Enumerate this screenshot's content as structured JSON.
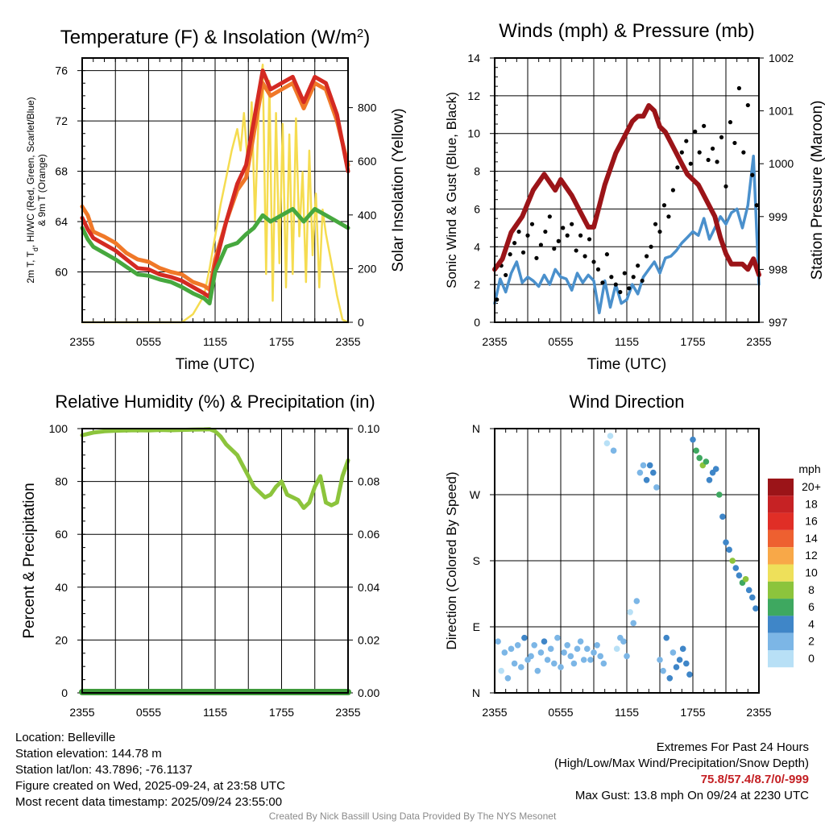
{
  "chart_data": [
    {
      "type": "line",
      "title": "Temperature (F) & Insolation (W/m²)",
      "title_main": "Temperature (F) & Insolation (W/m",
      "title_sup": "2",
      "title_tail": ")",
      "xlabel": "Time (UTC)",
      "ylabel": "2m T, Td, HI/WC (Red, Green, Scarlet/Blue) & 9m T (Orange)",
      "ylabel_line1": "2m T, T",
      "ylabel_sub": "d",
      "ylabel_line1_tail": ", HI/WC (Red, Green, Scarlet/Blue)",
      "ylabel_line2": "& 9m T (Orange)",
      "y2label": "Solar Insolation (Yellow)",
      "x_ticks": [
        "2355",
        "0555",
        "1155",
        "1755",
        "2355"
      ],
      "x_hours": [
        0,
        24
      ],
      "ylim": [
        56,
        77
      ],
      "y_ticks": [
        60,
        64,
        68,
        72,
        76
      ],
      "y2lim": [
        0,
        985
      ],
      "y2_ticks": [
        0,
        200,
        400,
        600,
        800
      ],
      "series": [
        {
          "name": "9m T",
          "color": "#f07828",
          "x": [
            0,
            0.5,
            1,
            2,
            3,
            4,
            5,
            6,
            7,
            8,
            9,
            10,
            11,
            11.5,
            12,
            13,
            14,
            14.8,
            15.5,
            16.3,
            17,
            18,
            19,
            20,
            21,
            22,
            23,
            24
          ],
          "values": [
            65.2,
            64.5,
            63.2,
            62.8,
            62.3,
            61.5,
            61.0,
            60.8,
            60.3,
            60.0,
            59.8,
            59.2,
            58.9,
            58.6,
            61.0,
            64.0,
            66.5,
            67.5,
            71.0,
            75.0,
            74.0,
            74.5,
            75.0,
            73.0,
            75.0,
            74.5,
            72.0,
            68.5
          ]
        },
        {
          "name": "2m T",
          "color": "#d42a22",
          "x": [
            0,
            0.5,
            1,
            2,
            3,
            4,
            5,
            6,
            7,
            8,
            9,
            10,
            11,
            11.5,
            12,
            13,
            14,
            14.8,
            15.5,
            16.3,
            17,
            18,
            19,
            20,
            21,
            22,
            23,
            24
          ],
          "values": [
            64.3,
            63.4,
            62.7,
            62.2,
            61.7,
            61.0,
            60.3,
            60.2,
            59.8,
            59.6,
            59.3,
            58.8,
            58.3,
            58.0,
            60.5,
            64.0,
            67.0,
            68.5,
            72.0,
            76.0,
            74.5,
            75.0,
            75.5,
            73.5,
            75.5,
            75.0,
            72.5,
            68.0
          ]
        },
        {
          "name": "Td",
          "color": "#46a83e",
          "x": [
            0,
            0.5,
            1,
            2,
            3,
            4,
            5,
            6,
            7,
            8,
            9,
            10,
            11,
            11.5,
            12,
            13,
            14,
            14.8,
            15.5,
            16.3,
            17,
            18,
            19,
            20,
            21,
            22,
            23,
            24
          ],
          "values": [
            63.5,
            62.6,
            62.0,
            61.5,
            61.0,
            60.4,
            59.8,
            59.7,
            59.4,
            59.2,
            58.8,
            58.3,
            57.9,
            57.5,
            60.0,
            62.0,
            62.3,
            63.0,
            63.5,
            64.5,
            64.0,
            64.5,
            65.0,
            64.0,
            65.0,
            64.5,
            64.0,
            63.5
          ]
        },
        {
          "name": "Solar Insolation",
          "color": "#f5dc50",
          "axis": "y2",
          "x": [
            0,
            9,
            10,
            11,
            11.5,
            12,
            12.5,
            13,
            13.5,
            14,
            14.3,
            14.6,
            15,
            15.3,
            15.6,
            16,
            16.3,
            16.6,
            16.9,
            17.2,
            17.5,
            17.8,
            18.1,
            18.4,
            18.7,
            19.0,
            19.3,
            19.6,
            19.9,
            20.2,
            20.5,
            20.8,
            21.1,
            21.4,
            21.7,
            22,
            22.5,
            23,
            23.5,
            24
          ],
          "values": [
            0,
            0,
            30,
            100,
            200,
            320,
            440,
            540,
            640,
            720,
            640,
            780,
            560,
            820,
            380,
            860,
            960,
            180,
            900,
            80,
            780,
            220,
            740,
            130,
            700,
            180,
            760,
            320,
            560,
            150,
            640,
            250,
            480,
            130,
            420,
            330,
            220,
            100,
            10,
            0
          ]
        }
      ]
    },
    {
      "type": "line",
      "title": "Winds (mph) & Pressure (mb)",
      "xlabel": "Time (UTC)",
      "ylabel": "Sonic Wind & Gust (Blue, Black)",
      "y2label": "Station Pressure (Maroon)",
      "x_ticks": [
        "2355",
        "0555",
        "1155",
        "1755",
        "2355"
      ],
      "x_hours": [
        0,
        24
      ],
      "ylim": [
        0,
        14
      ],
      "y_ticks": [
        0,
        2,
        4,
        6,
        8,
        10,
        12,
        14
      ],
      "y2lim": [
        997,
        1002
      ],
      "y2_ticks": [
        997,
        998,
        999,
        1000,
        1001,
        1002
      ],
      "series": [
        {
          "name": "Sonic Wind",
          "color": "#4a90cc",
          "x": [
            0,
            0.5,
            1,
            1.5,
            2,
            2.5,
            3,
            3.5,
            4,
            4.5,
            5,
            5.5,
            6,
            6.5,
            7,
            7.5,
            8,
            8.5,
            9,
            9.5,
            10,
            10.5,
            11,
            11.5,
            12,
            12.5,
            13,
            13.5,
            14,
            14.5,
            15,
            15.5,
            16,
            16.5,
            17,
            17.5,
            18,
            18.5,
            19,
            19.5,
            20,
            20.5,
            21,
            21.5,
            22,
            22.5,
            23,
            23.5,
            24
          ],
          "values": [
            1.0,
            2.3,
            1.6,
            2.6,
            3.2,
            2.1,
            2.4,
            2.2,
            1.9,
            2.5,
            2.0,
            2.8,
            2.4,
            2.3,
            1.7,
            2.6,
            2.1,
            2.5,
            2.2,
            0.5,
            2.2,
            0.8,
            2.0,
            1.0,
            1.2,
            2.0,
            1.5,
            2.4,
            2.8,
            3.2,
            2.6,
            3.4,
            3.5,
            3.8,
            4.2,
            4.5,
            4.8,
            4.6,
            5.5,
            4.4,
            5.0,
            5.6,
            5.2,
            5.8,
            6.0,
            5.0,
            6.2,
            8.8,
            2.0
          ]
        },
        {
          "name": "Station Pressure",
          "color": "#9b1418",
          "axis": "y2",
          "x": [
            0,
            0.7,
            1.5,
            2.5,
            3.5,
            4.5,
            5.5,
            6,
            7,
            8,
            8.5,
            9,
            10,
            11,
            11.5,
            12,
            12.5,
            13,
            13.5,
            14,
            14.5,
            15,
            15.5,
            16,
            16.5,
            17,
            17.5,
            18,
            18.5,
            19,
            19.5,
            20,
            20.5,
            21,
            21.5,
            22,
            22.5,
            23,
            23.5,
            24
          ],
          "values": [
            998.0,
            998.2,
            998.7,
            999.0,
            999.5,
            999.8,
            999.5,
            999.7,
            999.4,
            999.0,
            998.8,
            998.8,
            999.6,
            1000.2,
            1000.4,
            1000.6,
            1000.8,
            1000.9,
            1000.9,
            1001.1,
            1001.0,
            1000.7,
            1000.6,
            1000.4,
            1000.2,
            1000.0,
            999.8,
            999.7,
            999.6,
            999.4,
            999.2,
            999.0,
            998.6,
            998.3,
            998.1,
            998.1,
            998.1,
            998.0,
            998.2,
            997.9
          ]
        }
      ],
      "gust_points": {
        "x": [
          0.2,
          0.6,
          1.0,
          1.4,
          1.8,
          2.2,
          2.6,
          3.0,
          3.4,
          3.8,
          4.2,
          4.6,
          5.0,
          5.4,
          5.8,
          6.2,
          6.6,
          7.0,
          7.4,
          7.8,
          8.2,
          8.6,
          9.0,
          9.4,
          9.8,
          10.2,
          10.6,
          11.0,
          11.4,
          11.8,
          12.2,
          12.6,
          13.0,
          13.4,
          13.8,
          14.2,
          14.6,
          15.0,
          15.4,
          15.8,
          16.2,
          16.6,
          17.0,
          17.4,
          17.8,
          18.2,
          18.6,
          19.0,
          19.4,
          19.8,
          20.2,
          20.6,
          21.0,
          21.4,
          21.8,
          22.2,
          22.6,
          23.0,
          23.4,
          23.8
        ],
        "values": [
          1.2,
          3.0,
          2.5,
          3.6,
          4.2,
          4.8,
          3.7,
          4.6,
          5.2,
          3.4,
          4.1,
          4.8,
          5.6,
          3.9,
          4.3,
          5.0,
          4.6,
          5.2,
          3.8,
          4.6,
          3.5,
          4.4,
          3.2,
          2.8,
          2.1,
          3.6,
          2.4,
          2.0,
          1.6,
          2.6,
          1.8,
          2.4,
          3.0,
          2.2,
          3.5,
          4.0,
          5.2,
          4.8,
          6.2,
          5.6,
          7.0,
          8.2,
          9.0,
          9.6,
          8.4,
          10.1,
          9.0,
          10.4,
          8.6,
          9.2,
          8.5,
          9.8,
          7.2,
          10.6,
          9.5,
          12.4,
          9.0,
          11.5,
          7.8,
          6.2
        ]
      }
    },
    {
      "type": "line",
      "title": "Relative Humidity (%) & Precipitation (in)",
      "xlabel": "",
      "ylabel": "Percent & Precipitation",
      "x_ticks": [
        "2355",
        "0555",
        "1155",
        "1755",
        "2355"
      ],
      "x_hours": [
        0,
        24
      ],
      "ylim": [
        0,
        100
      ],
      "y_ticks": [
        0,
        20,
        40,
        60,
        80,
        100
      ],
      "y2lim": [
        0,
        0.1
      ],
      "y2_ticks": [
        "0.00",
        "0.02",
        "0.04",
        "0.06",
        "0.08",
        "0.10"
      ],
      "series": [
        {
          "name": "Relative Humidity",
          "color": "#8cc43c",
          "x": [
            0,
            1,
            2,
            3,
            4,
            5,
            6,
            7,
            8,
            9,
            10,
            11,
            11.5,
            12,
            12.5,
            13,
            13.5,
            14,
            14.5,
            15,
            15.5,
            16,
            16.5,
            17,
            17.5,
            18,
            18.5,
            19,
            19.5,
            20,
            20.5,
            21,
            21.5,
            22,
            22.5,
            23,
            23.5,
            24
          ],
          "values": [
            97.5,
            98.5,
            99.0,
            99.2,
            99.3,
            99.4,
            99.3,
            99.5,
            99.4,
            99.5,
            99.6,
            99.7,
            99.8,
            99.0,
            97.0,
            94.0,
            92.0,
            90.0,
            86.0,
            82.0,
            78.0,
            76.0,
            74.0,
            75.0,
            78.0,
            80.0,
            75.0,
            74.0,
            73.0,
            70.0,
            72.0,
            78.0,
            82.0,
            72.0,
            71.0,
            72.0,
            82.0,
            88.0
          ]
        },
        {
          "name": "Precipitation",
          "color": "#3e9a3a",
          "axis": "y2",
          "x": [
            0,
            24
          ],
          "values": [
            0.0,
            0.0
          ]
        }
      ]
    },
    {
      "type": "scatter",
      "title": "Wind Direction",
      "xlabel": "",
      "ylabel": "Direction (Colored By Speed)",
      "x_ticks": [
        "2355",
        "0555",
        "1155",
        "1755",
        "2355"
      ],
      "x_hours": [
        0,
        24
      ],
      "y_ticks": [
        "N",
        "E",
        "S",
        "W",
        "N"
      ],
      "ylim": [
        0,
        360
      ],
      "colorbar": {
        "unit": "mph",
        "labels": [
          "20+",
          "18",
          "16",
          "14",
          "12",
          "10",
          "8",
          "6",
          "4",
          "2",
          "0"
        ],
        "colors": [
          "#9b1418",
          "#c62224",
          "#e02e26",
          "#ee6030",
          "#f8a848",
          "#eee05a",
          "#8cc43c",
          "#3ea860",
          "#3f86c8",
          "#7cb6e6",
          "#b8e0f6"
        ]
      },
      "points": {
        "x": [
          0.3,
          0.6,
          0.9,
          1.2,
          1.5,
          1.8,
          2.1,
          2.4,
          2.7,
          3.0,
          3.3,
          3.6,
          3.9,
          4.2,
          4.5,
          4.8,
          5.1,
          5.4,
          5.7,
          6.0,
          6.3,
          6.6,
          6.9,
          7.2,
          7.5,
          7.8,
          8.1,
          8.4,
          8.7,
          9.0,
          9.3,
          9.6,
          9.9,
          10.2,
          10.5,
          10.8,
          11.1,
          11.4,
          11.7,
          12.0,
          12.3,
          12.6,
          12.9,
          13.2,
          13.5,
          13.8,
          14.1,
          14.4,
          14.7,
          15.0,
          15.3,
          15.6,
          15.9,
          16.2,
          16.5,
          16.8,
          17.1,
          17.4,
          17.7,
          18.0,
          18.3,
          18.6,
          18.9,
          19.2,
          19.5,
          19.8,
          20.1,
          20.4,
          20.7,
          21.0,
          21.3,
          21.6,
          21.9,
          22.2,
          22.5,
          22.8,
          23.1,
          23.4,
          23.7
        ],
        "directions": [
          70,
          30,
          55,
          20,
          60,
          40,
          65,
          35,
          75,
          45,
          50,
          65,
          30,
          55,
          70,
          45,
          60,
          40,
          75,
          35,
          55,
          65,
          50,
          40,
          60,
          70,
          45,
          60,
          45,
          55,
          65,
          50,
          40,
          340,
          350,
          330,
          60,
          75,
          70,
          50,
          110,
          95,
          125,
          300,
          310,
          290,
          310,
          300,
          280,
          45,
          30,
          75,
          20,
          55,
          35,
          45,
          60,
          40,
          25,
          345,
          330,
          320,
          310,
          315,
          290,
          300,
          305,
          270,
          240,
          205,
          195,
          180,
          170,
          160,
          150,
          155,
          140,
          130,
          115
        ],
        "speeds": [
          1.5,
          0.5,
          2.0,
          1.2,
          2.5,
          1.8,
          2.2,
          1.5,
          3.0,
          2.0,
          2.4,
          2.6,
          1.8,
          2.2,
          3.4,
          2.0,
          2.6,
          1.5,
          2.8,
          2.0,
          2.4,
          1.6,
          2.2,
          1.8,
          2.0,
          2.6,
          1.4,
          2.2,
          1.8,
          1.6,
          2.0,
          1.2,
          1.5,
          0.5,
          0.8,
          1.0,
          0.6,
          1.2,
          1.5,
          1.0,
          0.8,
          1.2,
          1.6,
          2.5,
          2.8,
          3.2,
          3.0,
          3.5,
          2.6,
          1.5,
          2.8,
          3.2,
          3.6,
          2.5,
          4.0,
          3.8,
          4.2,
          3.5,
          4.5,
          4.2,
          5.5,
          6.5,
          7.0,
          6.2,
          4.5,
          4.0,
          4.2,
          5.2,
          4.8,
          4.5,
          3.8,
          7.5,
          4.2,
          3.8,
          6.5,
          7.2,
          4.0,
          3.6,
          4.0
        ]
      }
    }
  ],
  "station_info": {
    "location": "Location: Belleville",
    "elevation": "Station elevation: 144.78 m",
    "latlon": "Station lat/lon: 43.7896; -76.1137",
    "created": "Figure created on Wed, 2025-09-24, at 23:58 UTC",
    "latest": "Most recent data timestamp: 2025/09/24 23:55:00"
  },
  "extremes": {
    "title": "Extremes For Past 24 Hours",
    "legend": "(High/Low/Max Wind/Precipitation/Snow Depth)",
    "values": "75.8/57.4/8.7/0/-999",
    "gust": "Max Gust: 13.8 mph On 09/24 at 2230 UTC"
  },
  "credit": "Created By Nick Bassill Using Data Provided By The NYS Mesonet"
}
